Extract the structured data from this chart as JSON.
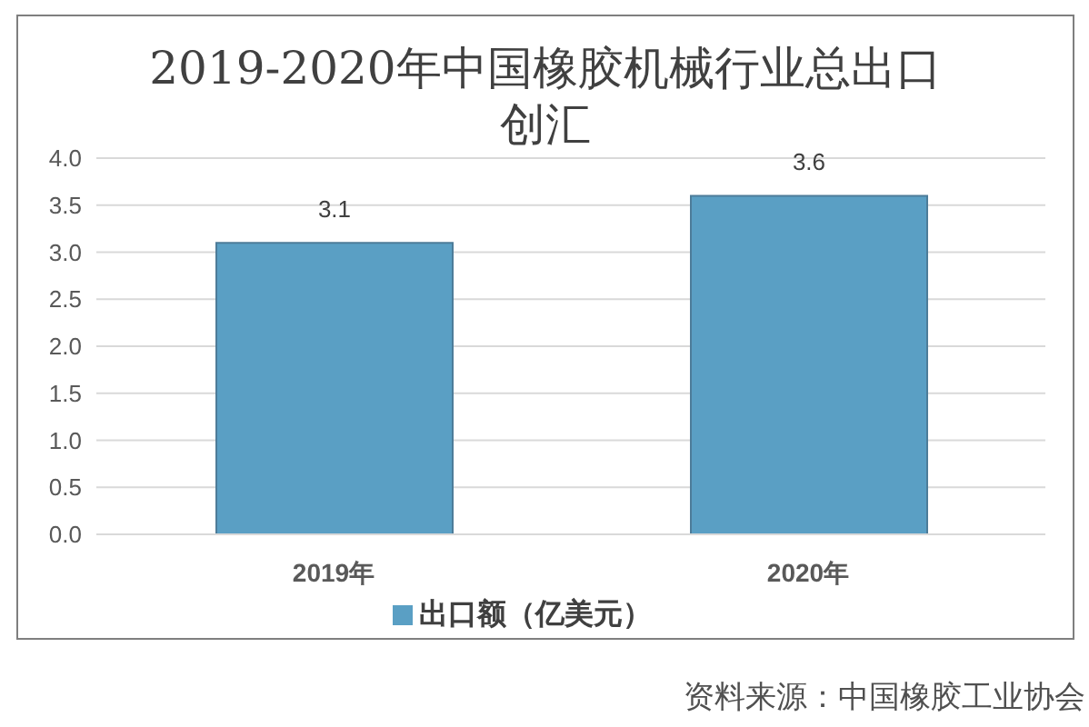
{
  "chart_data": {
    "type": "bar",
    "title": "2019-2020年中国橡胶机械行业总出口创汇",
    "categories": [
      "2019年",
      "2020年"
    ],
    "series": [
      {
        "name": "出口额（亿美元）",
        "color": "#5a9fc4",
        "values": [
          3.1,
          3.6
        ]
      }
    ],
    "ylim": [
      0,
      4
    ],
    "yticks": [
      {
        "value": 0,
        "label": "0.0"
      },
      {
        "value": 0.5,
        "label": "0.5"
      },
      {
        "value": 1,
        "label": "1.0"
      },
      {
        "value": 1.5,
        "label": "1.5"
      },
      {
        "value": 2,
        "label": "2.0"
      },
      {
        "value": 2.5,
        "label": "2.5"
      },
      {
        "value": 3,
        "label": "3.0"
      },
      {
        "value": 3.5,
        "label": "3.5"
      },
      {
        "value": 4,
        "label": "4.0"
      }
    ],
    "grid": "y",
    "legend": "bottom",
    "data_labels": true,
    "annotations": [
      "资料来源：中国橡胶工业协会"
    ]
  }
}
